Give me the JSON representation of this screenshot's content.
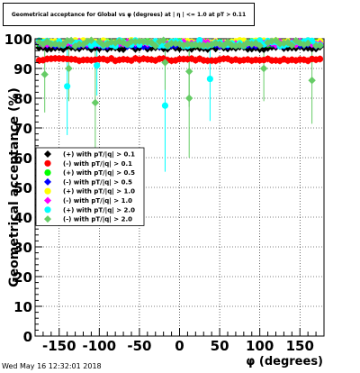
{
  "chart_data": {
    "type": "scatter",
    "title": "Geometrical acceptance for Global vs φ (degrees) at | η | <= 1.0 at pT > 0.11",
    "xlabel": "φ (degrees)",
    "ylabel": "Geometrical acceptance (%)",
    "xlim": [
      -180,
      180
    ],
    "ylim": [
      0,
      100
    ],
    "xticks": [
      -150,
      -100,
      -50,
      0,
      50,
      100,
      150
    ],
    "yticks": [
      0,
      10,
      20,
      30,
      40,
      50,
      60,
      70,
      80,
      90,
      100
    ],
    "grid": true,
    "legend_position": "left-middle",
    "series": [
      {
        "name": "(+) with pT/|q| > 0.1",
        "color": "#000000",
        "marker": "diamond",
        "base": 97.0,
        "noise": 1.2
      },
      {
        "name": "(-) with pT/|q| > 0.1",
        "color": "#ff0000",
        "marker": "circle",
        "base": 93.0,
        "noise": 0.8
      },
      {
        "name": "(+) with pT/|q| > 0.5",
        "color": "#00ff00",
        "marker": "circle",
        "base": 98.5,
        "noise": 1.3
      },
      {
        "name": "(-) with pT/|q| > 0.5",
        "color": "#0000ff",
        "marker": "diamond",
        "base": 98.0,
        "noise": 1.3
      },
      {
        "name": "(+) with pT/|q| > 1.0",
        "color": "#ffff00",
        "marker": "circle",
        "base": 99.0,
        "noise": 1.0
      },
      {
        "name": "(-) with pT/|q| > 1.0",
        "color": "#ff00ff",
        "marker": "diamond",
        "base": 98.5,
        "noise": 1.3
      },
      {
        "name": "(+) with pT/|q| > 2.0",
        "color": "#00ffff",
        "marker": "circle",
        "base": 98.5,
        "noise": 2.0,
        "outliers": [
          {
            "x": -140,
            "y": 84
          },
          {
            "x": -103,
            "y": 91
          },
          {
            "x": -18,
            "y": 77.5
          },
          {
            "x": 38,
            "y": 86.5
          }
        ]
      },
      {
        "name": "(-) with pT/|q| > 2.0",
        "color": "#66cc66",
        "marker": "diamond",
        "base": 98.5,
        "noise": 2.0,
        "outliers": [
          {
            "x": -168,
            "y": 88
          },
          {
            "x": -138,
            "y": 90
          },
          {
            "x": -105,
            "y": 78.5
          },
          {
            "x": -18,
            "y": 92
          },
          {
            "x": 12,
            "y": 89
          },
          {
            "x": 12,
            "y": 80
          },
          {
            "x": 105,
            "y": 90
          },
          {
            "x": 165,
            "y": 86
          }
        ]
      }
    ]
  },
  "footer": {
    "timestamp": "Wed May 16 12:32:01 2018"
  }
}
